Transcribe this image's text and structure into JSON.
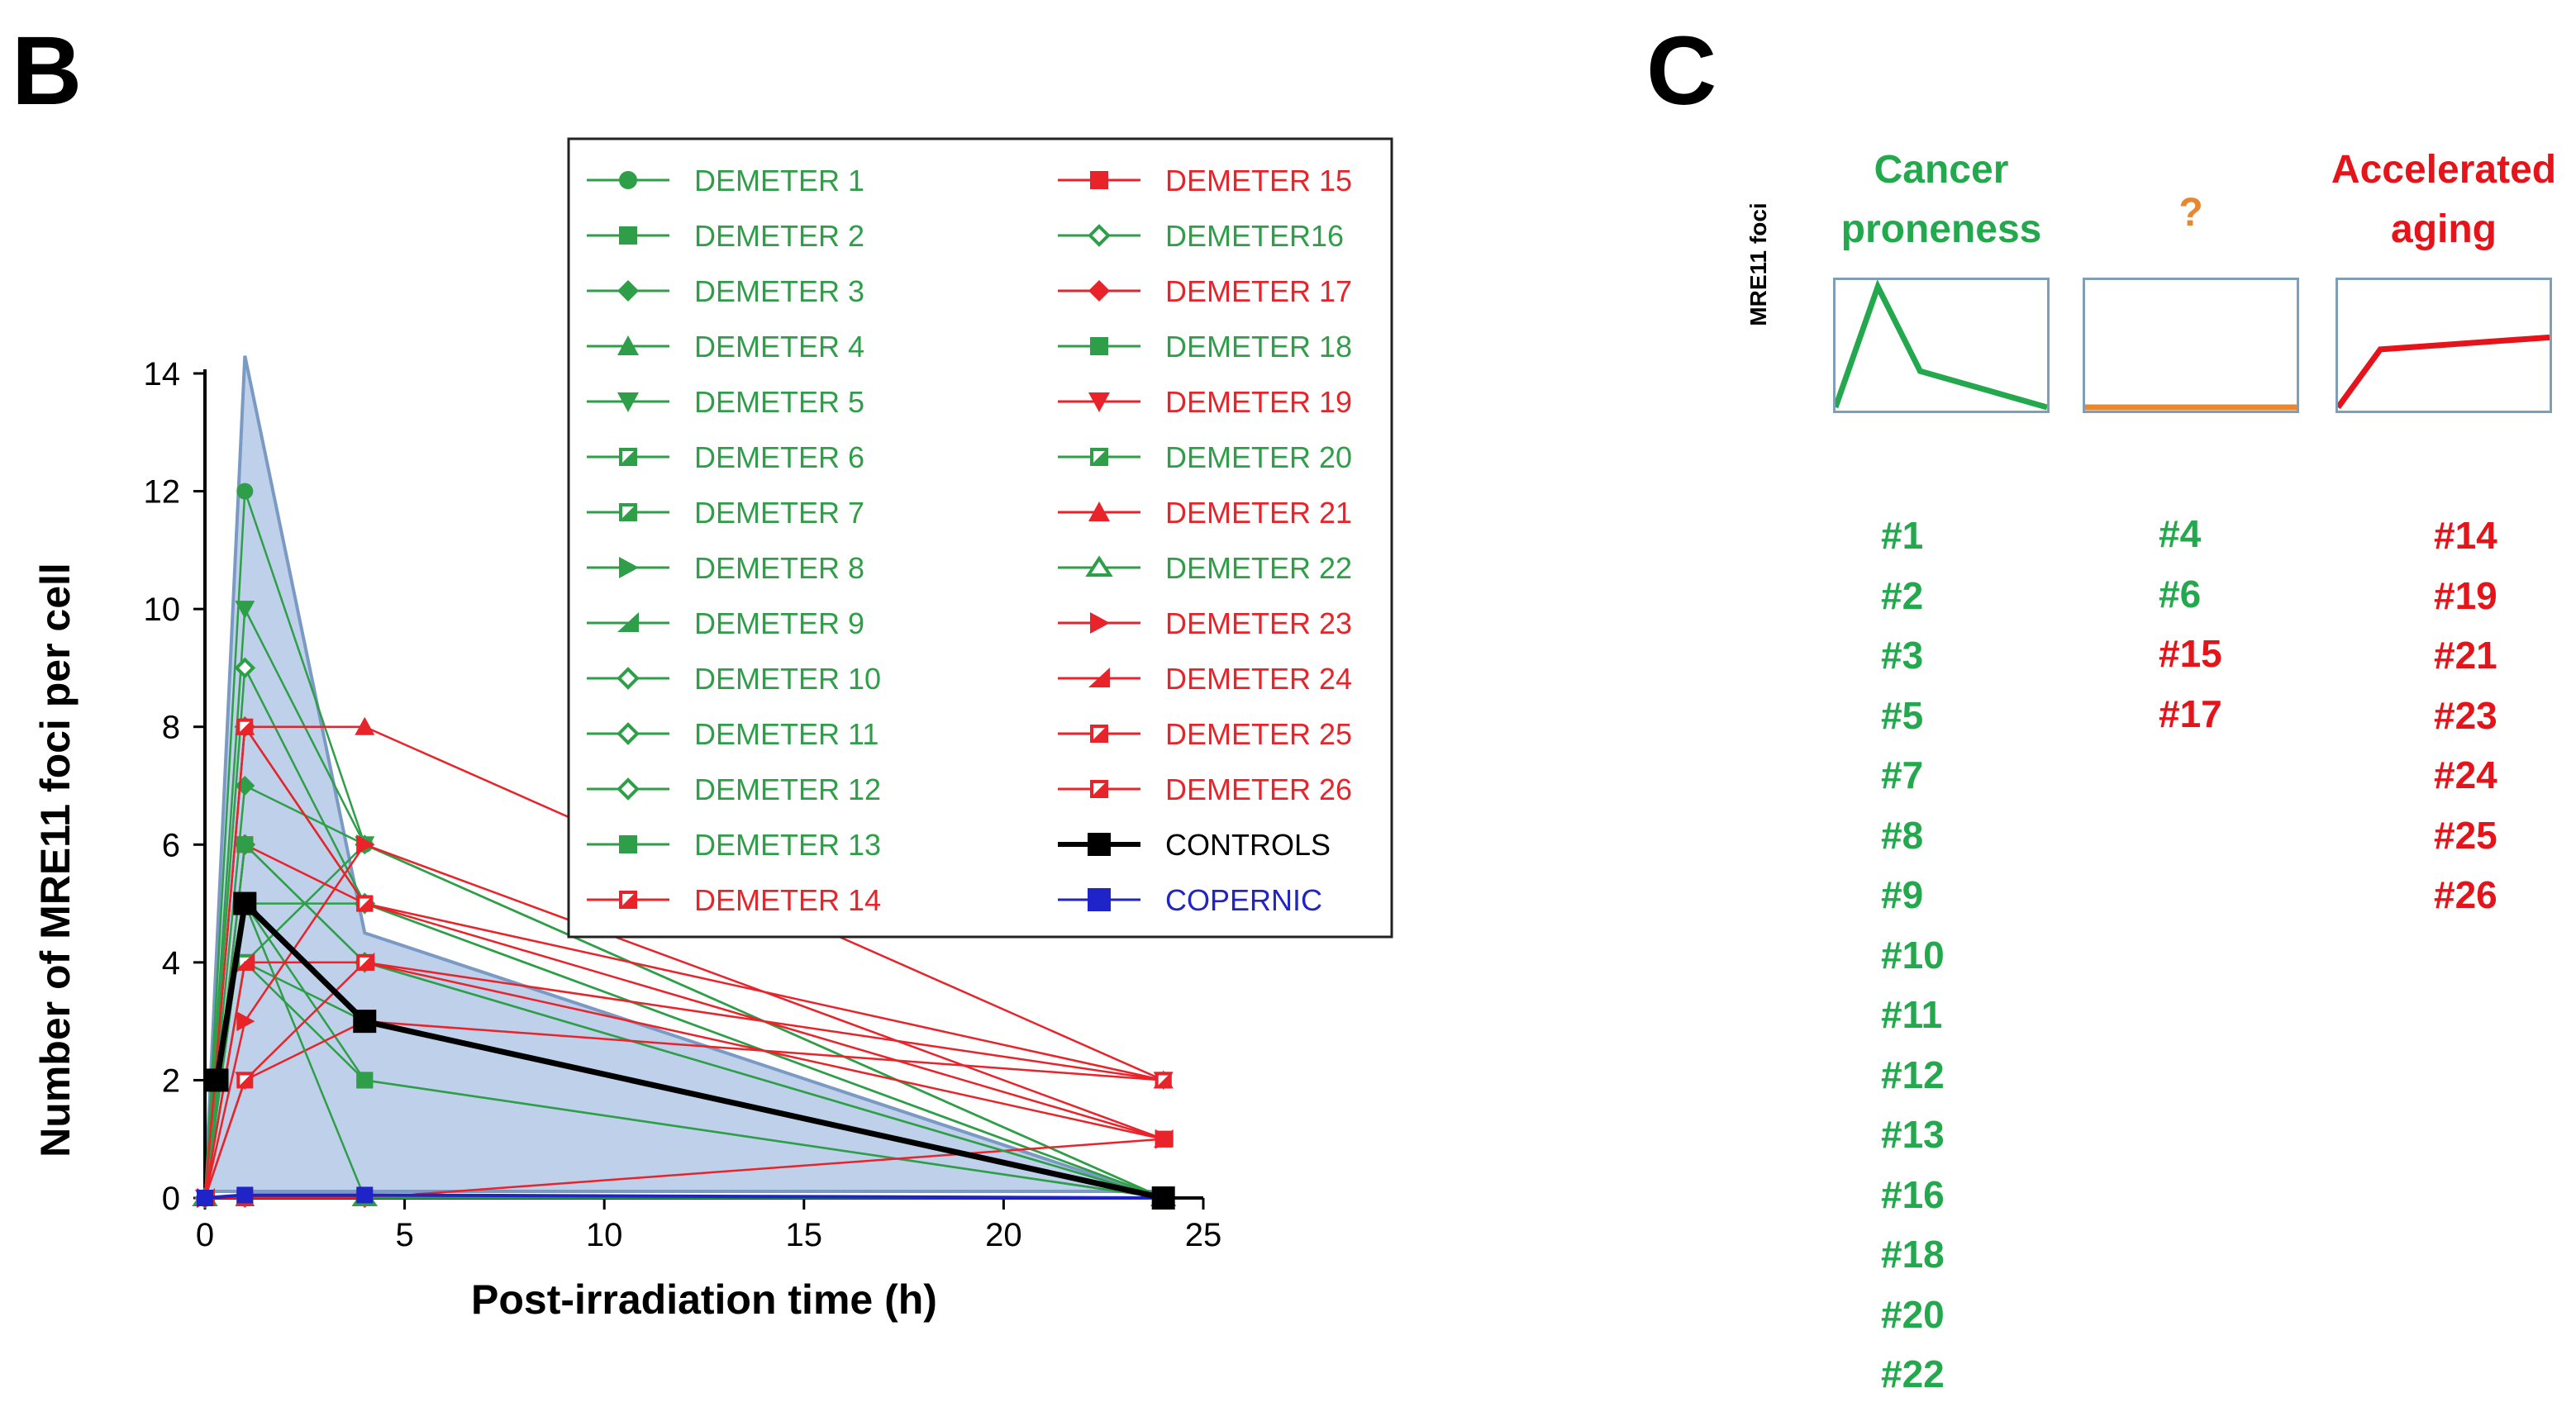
{
  "panel_b": {
    "letter": "B"
  },
  "panel_c": {
    "letter": "C"
  },
  "colors": {
    "green": "#2e9e48",
    "red": "#e8232a",
    "black": "#000000",
    "blue": "#1f24c8",
    "orange": "#e8872e",
    "band": "#b3c8e6",
    "band_edge": "#7a9ac4",
    "c_green": "#23a84e",
    "c_red": "#e5141b"
  },
  "chart_data": {
    "type": "line",
    "title": "",
    "xlabel": "Post-irradiation time (h)",
    "ylabel": "Number of MRE11 foci per cell",
    "xlim": [
      0,
      25
    ],
    "ylim": [
      0,
      14
    ],
    "xticks": [
      0,
      5,
      10,
      15,
      20,
      25
    ],
    "yticks": [
      0,
      2,
      4,
      6,
      8,
      10,
      12,
      14
    ],
    "band": {
      "upper": [
        [
          0,
          0
        ],
        [
          1,
          14.3
        ],
        [
          4,
          4.5
        ],
        [
          24,
          0
        ]
      ],
      "lower": [
        [
          0,
          0
        ],
        [
          24,
          0
        ]
      ]
    },
    "series": [
      {
        "name": "DEMETER 1",
        "color": "green",
        "marker": "circle",
        "x": [
          0,
          1,
          4,
          24
        ],
        "y": [
          0,
          12,
          6,
          0
        ]
      },
      {
        "name": "DEMETER 2",
        "color": "green",
        "marker": "square",
        "x": [
          0,
          1,
          4,
          24
        ],
        "y": [
          0,
          5,
          2,
          0
        ]
      },
      {
        "name": "DEMETER 3",
        "color": "green",
        "marker": "diamond",
        "x": [
          0,
          1,
          4,
          24
        ],
        "y": [
          0,
          7,
          6,
          0
        ]
      },
      {
        "name": "DEMETER 4",
        "color": "green",
        "marker": "triangle-up",
        "x": [
          0,
          1,
          4,
          24
        ],
        "y": [
          0,
          0,
          0,
          0
        ]
      },
      {
        "name": "DEMETER 5",
        "color": "green",
        "marker": "triangle-down",
        "x": [
          0,
          1,
          4,
          24
        ],
        "y": [
          0,
          10,
          6,
          0
        ]
      },
      {
        "name": "DEMETER 6",
        "color": "green",
        "marker": "square-half",
        "x": [
          0,
          1,
          4,
          24
        ],
        "y": [
          0,
          0,
          0,
          0
        ]
      },
      {
        "name": "DEMETER 7",
        "color": "green",
        "marker": "square-half",
        "x": [
          0,
          1,
          4,
          24
        ],
        "y": [
          0,
          5,
          5,
          0
        ]
      },
      {
        "name": "DEMETER 8",
        "color": "green",
        "marker": "triangle-right",
        "x": [
          0,
          1,
          4,
          24
        ],
        "y": [
          0,
          4,
          6,
          0
        ]
      },
      {
        "name": "DEMETER 9",
        "color": "green",
        "marker": "triangle-left",
        "x": [
          0,
          1,
          4,
          24
        ],
        "y": [
          0,
          5,
          3,
          0
        ]
      },
      {
        "name": "DEMETER 10",
        "color": "green",
        "marker": "diamond-open",
        "x": [
          0,
          1,
          4,
          24
        ],
        "y": [
          0,
          6,
          4,
          0
        ]
      },
      {
        "name": "DEMETER 11",
        "color": "green",
        "marker": "diamond-open",
        "x": [
          0,
          1,
          4,
          24
        ],
        "y": [
          0,
          8,
          5,
          0
        ]
      },
      {
        "name": "DEMETER 12",
        "color": "green",
        "marker": "diamond-open",
        "x": [
          0,
          1,
          4,
          24
        ],
        "y": [
          0,
          9,
          5,
          0
        ]
      },
      {
        "name": "DEMETER 13",
        "color": "green",
        "marker": "square",
        "x": [
          0,
          1,
          4,
          24
        ],
        "y": [
          0,
          4,
          2,
          0
        ]
      },
      {
        "name": "DEMETER 14",
        "color": "red",
        "marker": "square-half",
        "x": [
          0,
          1,
          4,
          24
        ],
        "y": [
          0,
          6,
          5,
          1
        ]
      },
      {
        "name": "DEMETER 15",
        "color": "red",
        "marker": "square",
        "x": [
          0,
          1,
          4,
          24
        ],
        "y": [
          0,
          0,
          0,
          1
        ]
      },
      {
        "name": "DEMETER16",
        "color": "green",
        "marker": "diamond-open",
        "x": [
          0,
          1,
          4,
          24
        ],
        "y": [
          0,
          5,
          3,
          0
        ]
      },
      {
        "name": "DEMETER 17",
        "color": "red",
        "marker": "diamond",
        "x": [
          0,
          1,
          4,
          24
        ],
        "y": [
          0,
          0,
          0,
          0
        ]
      },
      {
        "name": "DEMETER 18",
        "color": "green",
        "marker": "square",
        "x": [
          0,
          1,
          4,
          24
        ],
        "y": [
          0,
          6,
          4,
          0
        ]
      },
      {
        "name": "DEMETER 19",
        "color": "red",
        "marker": "triangle-down",
        "x": [
          0,
          1,
          4,
          24
        ],
        "y": [
          0,
          2,
          3,
          2
        ]
      },
      {
        "name": "DEMETER 20",
        "color": "green",
        "marker": "square-half",
        "x": [
          0,
          1,
          4,
          24
        ],
        "y": [
          0,
          4,
          3,
          0
        ]
      },
      {
        "name": "DEMETER 21",
        "color": "red",
        "marker": "triangle-up",
        "x": [
          0,
          1,
          4,
          24
        ],
        "y": [
          0,
          8,
          8,
          2
        ]
      },
      {
        "name": "DEMETER 22",
        "color": "green",
        "marker": "triangle-open",
        "x": [
          0,
          1,
          4,
          24
        ],
        "y": [
          0,
          5,
          0,
          0
        ]
      },
      {
        "name": "DEMETER 23",
        "color": "red",
        "marker": "triangle-right",
        "x": [
          0,
          1,
          4,
          24
        ],
        "y": [
          0,
          3,
          6,
          1
        ]
      },
      {
        "name": "DEMETER 24",
        "color": "red",
        "marker": "triangle-left",
        "x": [
          0,
          1,
          4,
          24
        ],
        "y": [
          0,
          4,
          4,
          1
        ]
      },
      {
        "name": "DEMETER 25",
        "color": "red",
        "marker": "square-half",
        "x": [
          0,
          1,
          4,
          24
        ],
        "y": [
          0,
          2,
          4,
          2
        ]
      },
      {
        "name": "DEMETER 26",
        "color": "red",
        "marker": "square-half",
        "x": [
          0,
          1,
          4,
          24
        ],
        "y": [
          0,
          8,
          5,
          2
        ]
      },
      {
        "name": "CONTROLS",
        "color": "black",
        "marker": "square",
        "x": [
          0.3,
          1,
          4,
          24
        ],
        "y": [
          2,
          5,
          3,
          0
        ]
      },
      {
        "name": "COPERNIC",
        "color": "blue",
        "marker": "square",
        "x": [
          0,
          1,
          4,
          24
        ],
        "y": [
          0,
          0.05,
          0.05,
          0
        ]
      }
    ]
  },
  "panel_c_data": {
    "groups": [
      {
        "title_lines": [
          "Cancer",
          "proneness"
        ],
        "color": "green",
        "profile": [
          [
            0,
            0
          ],
          [
            0.2,
            1
          ],
          [
            0.4,
            0.3
          ],
          [
            1,
            0
          ]
        ],
        "ids": [
          "#1",
          "#2",
          "#3",
          "#5",
          "#7",
          "#8",
          "#9",
          "#10",
          "#11",
          "#12",
          "#13",
          "#16",
          "#18",
          "#20",
          "#22"
        ],
        "id_color": "green"
      },
      {
        "title_lines": [
          "?"
        ],
        "color": "orange",
        "profile": [
          [
            0,
            0
          ],
          [
            1,
            0
          ]
        ],
        "ids": [
          "#4",
          "#6",
          "#15",
          "#17"
        ],
        "id_colors": [
          "green",
          "green",
          "red",
          "red"
        ]
      },
      {
        "title_lines": [
          "Accelerated",
          "aging"
        ],
        "color": "red",
        "profile": [
          [
            0,
            0
          ],
          [
            0.2,
            0.48
          ],
          [
            1,
            0.58
          ]
        ],
        "ids": [
          "#14",
          "#19",
          "#21",
          "#23",
          "#24",
          "#25",
          "#26"
        ],
        "id_color": "red"
      }
    ],
    "mini_ylabel": "MRE11 foci"
  }
}
